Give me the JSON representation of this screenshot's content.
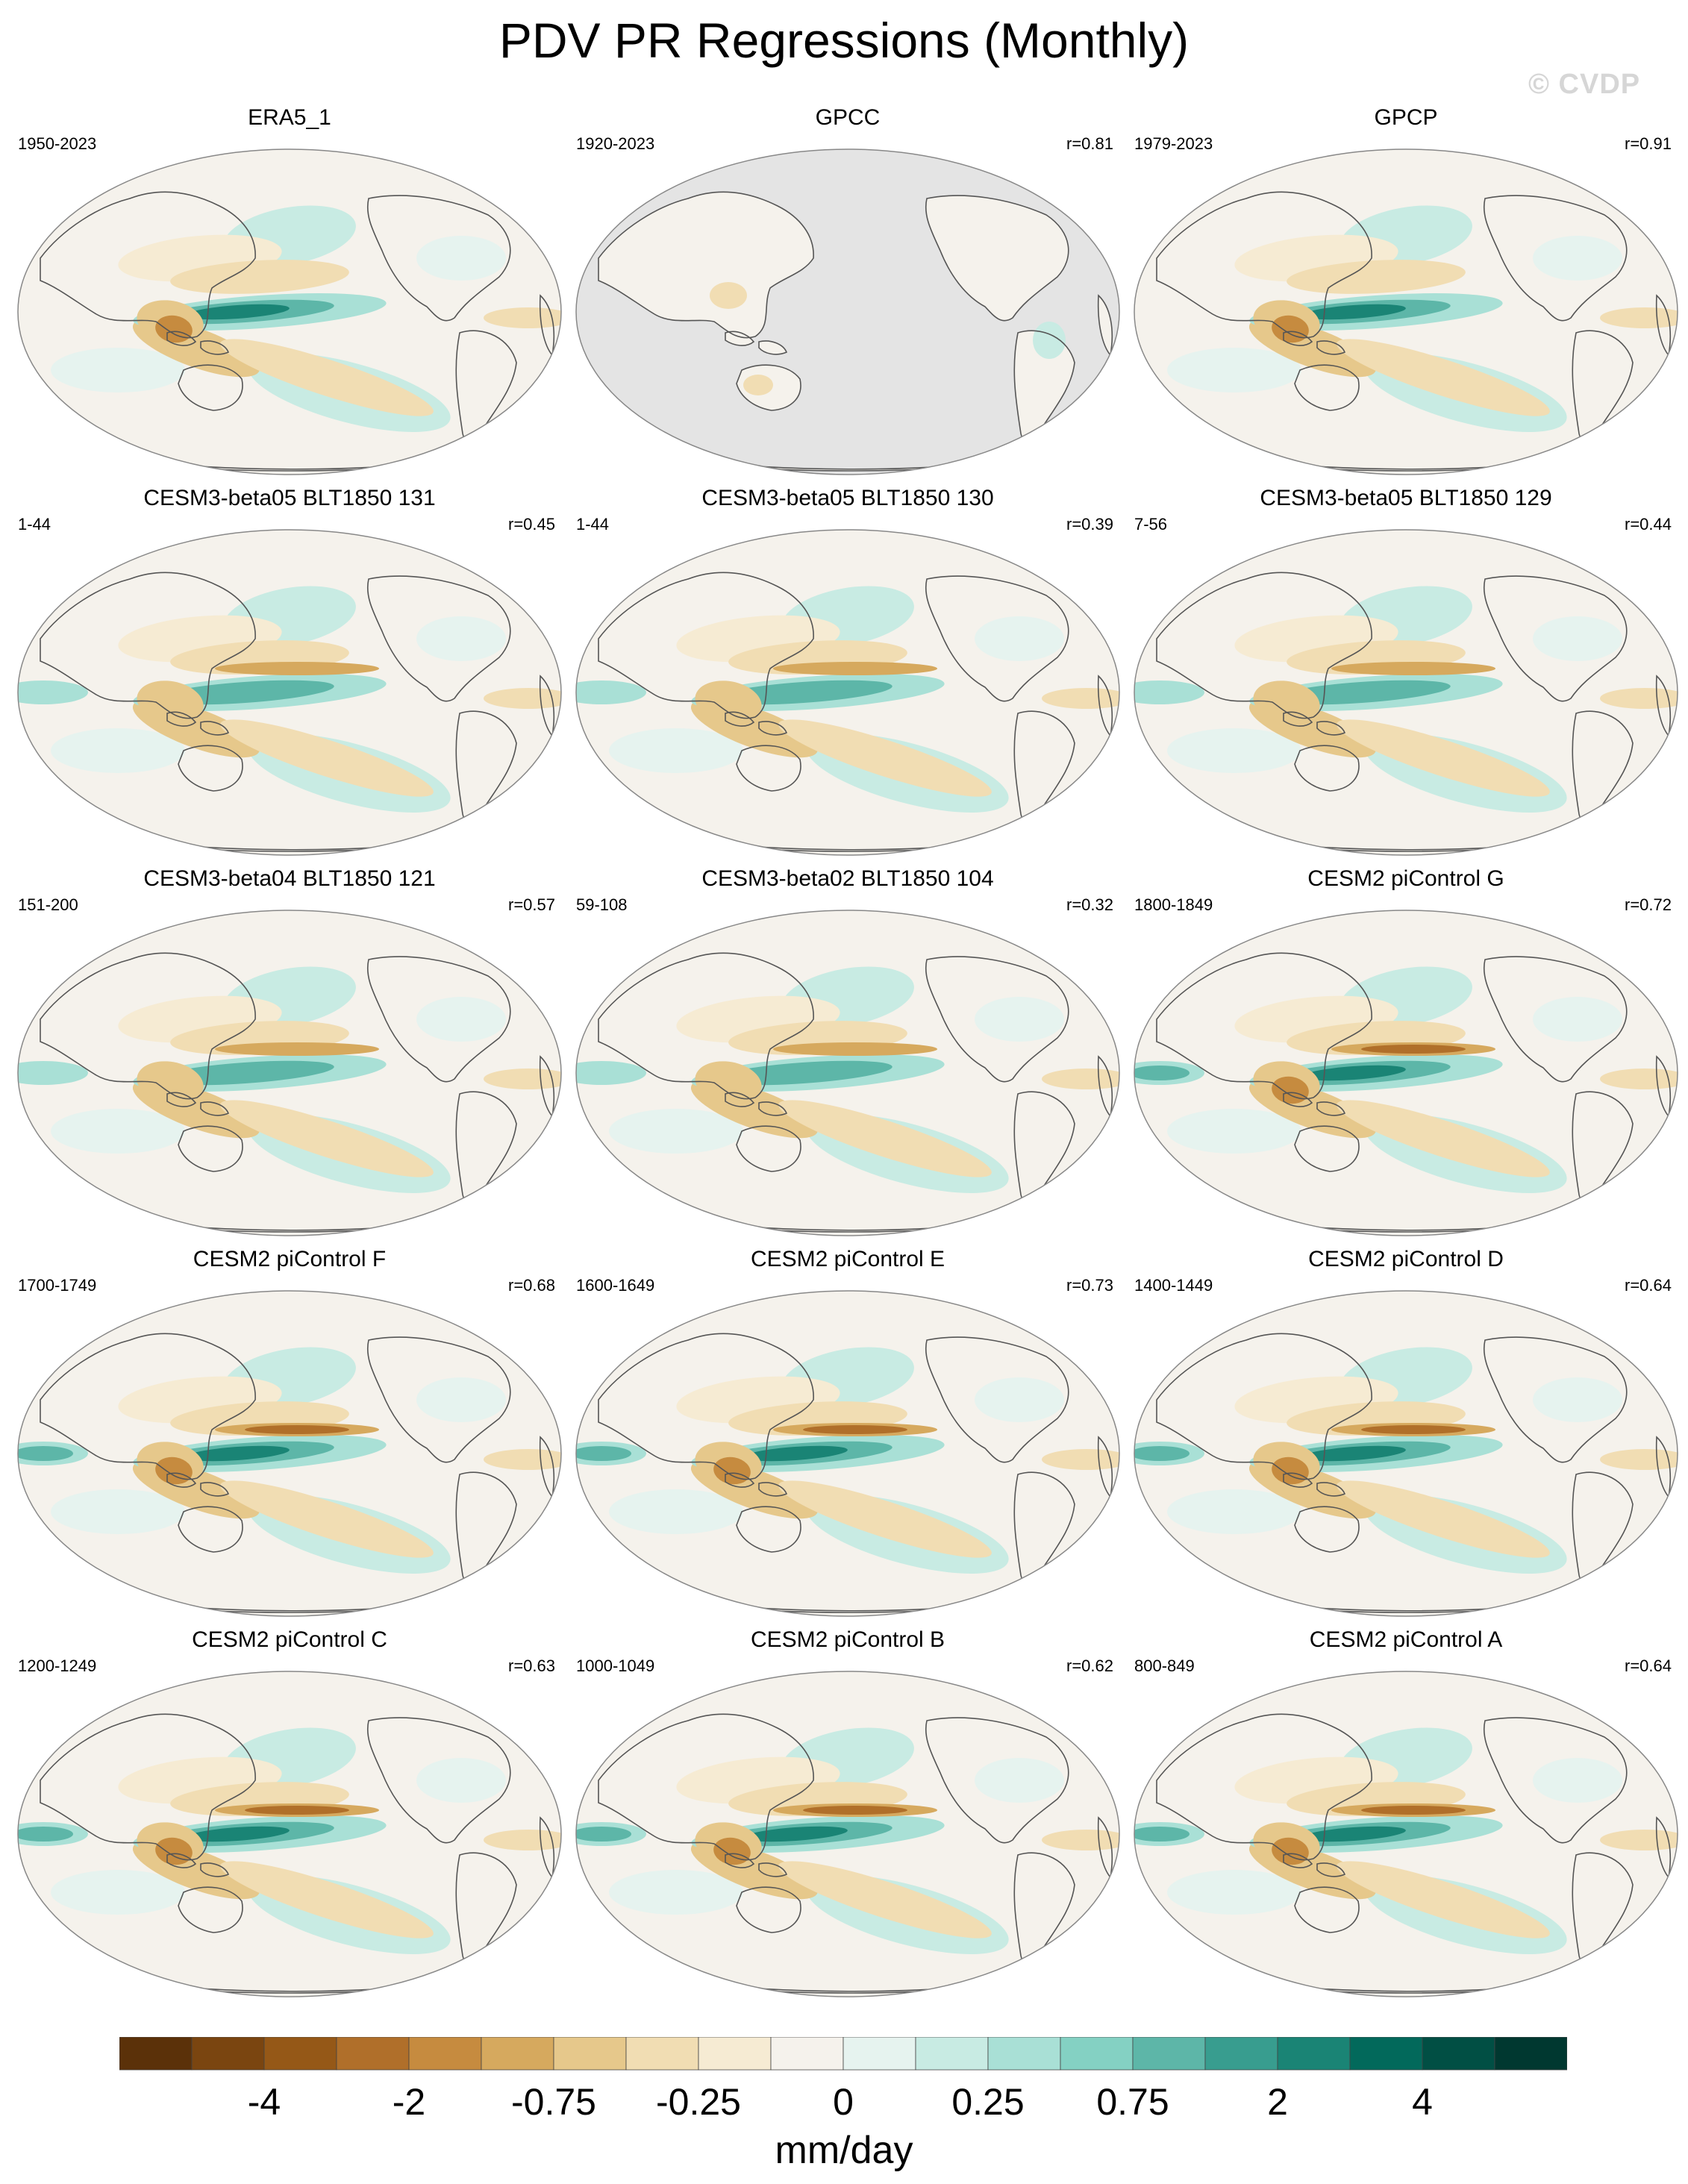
{
  "title": "PDV PR Regressions (Monthly)",
  "watermark": "© CVDP",
  "panels": [
    {
      "name": "ERA5_1",
      "period": "1950-2023",
      "r": ""
    },
    {
      "name": "GPCC",
      "period": "1920-2023",
      "r": "r=0.81"
    },
    {
      "name": "GPCP",
      "period": "1979-2023",
      "r": "r=0.91"
    },
    {
      "name": "CESM3-beta05 BLT1850 131",
      "period": "1-44",
      "r": "r=0.45"
    },
    {
      "name": "CESM3-beta05 BLT1850 130",
      "period": "1-44",
      "r": "r=0.39"
    },
    {
      "name": "CESM3-beta05 BLT1850 129",
      "period": "7-56",
      "r": "r=0.44"
    },
    {
      "name": "CESM3-beta04 BLT1850 121",
      "period": "151-200",
      "r": "r=0.57"
    },
    {
      "name": "CESM3-beta02 BLT1850 104",
      "period": "59-108",
      "r": "r=0.32"
    },
    {
      "name": "CESM2 piControl G",
      "period": "1800-1849",
      "r": "r=0.72"
    },
    {
      "name": "CESM2 piControl F",
      "period": "1700-1749",
      "r": "r=0.68"
    },
    {
      "name": "CESM2 piControl E",
      "period": "1600-1649",
      "r": "r=0.73"
    },
    {
      "name": "CESM2 piControl D",
      "period": "1400-1449",
      "r": "r=0.64"
    },
    {
      "name": "CESM2 piControl C",
      "period": "1200-1249",
      "r": "r=0.63"
    },
    {
      "name": "CESM2 piControl B",
      "period": "1000-1049",
      "r": "r=0.62"
    },
    {
      "name": "CESM2 piControl A",
      "period": "800-849",
      "r": "r=0.64"
    }
  ],
  "colorbar": {
    "colors": [
      "#5b3109",
      "#7a4510",
      "#955817",
      "#b06f2a",
      "#c68b3f",
      "#d6a95e",
      "#e6c88b",
      "#f1ddb3",
      "#f6ebd3",
      "#f5f2ec",
      "#e6f3ef",
      "#c8ebe3",
      "#a9e0d6",
      "#84d1c3",
      "#5db6a8",
      "#389d8f",
      "#1a8475",
      "#02695b",
      "#014f44",
      "#003830"
    ],
    "tick_labels": [
      "-4",
      "-2",
      "-0.75",
      "-0.25",
      "0",
      "0.25",
      "0.75",
      "2",
      "4"
    ],
    "unit": "mm/day"
  },
  "palette": {
    "ocean_neutral": "#f5f2ec",
    "land_missing": "#e4e4e4",
    "coast": "#555555"
  }
}
